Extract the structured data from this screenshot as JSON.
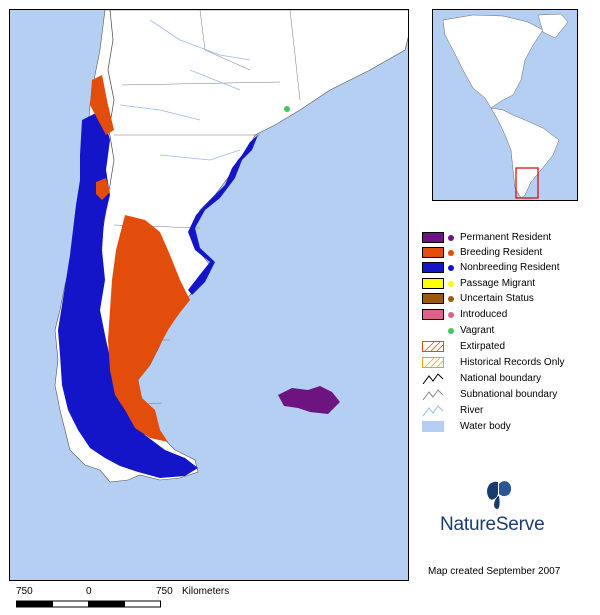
{
  "map": {
    "water_color": "#b4cff1",
    "land_color": "#ffffff",
    "region_colors": {
      "permanent_resident": "#6e1480",
      "breeding_resident": "#e34d0b",
      "nonbreeding_resident": "#1414c8",
      "vagrant": "#44c85c"
    }
  },
  "legend": {
    "items": [
      {
        "label": "Permanent Resident",
        "swatch": "#6e1480",
        "dot": "#6e1480"
      },
      {
        "label": "Breeding Resident",
        "swatch": "#e34d0b",
        "dot": "#e34d0b"
      },
      {
        "label": "Nonbreeding Resident",
        "swatch": "#1414c8",
        "dot": "#1414c8"
      },
      {
        "label": "Passage Migrant",
        "swatch": "#ffff00",
        "dot": "#ffff00"
      },
      {
        "label": "Uncertain Status",
        "swatch": "#9a5a0a",
        "dot": "#9a5a0a"
      },
      {
        "label": "Introduced",
        "swatch": "#e0608a",
        "dot": "#e0608a"
      },
      {
        "label": "Vagrant",
        "swatch": null,
        "dot": "#44c85c"
      },
      {
        "label": "Extirpated",
        "swatch": "hatch-red",
        "dot": null
      },
      {
        "label": "Historical Records Only",
        "swatch": "hatch-orange",
        "dot": null
      },
      {
        "label": "National boundary",
        "swatch": "line-black",
        "dot": null
      },
      {
        "label": "Subnational boundary",
        "swatch": "line-gray",
        "dot": null
      },
      {
        "label": "River",
        "swatch": "line-blue",
        "dot": null
      },
      {
        "label": "Water body",
        "swatch": "#b4cff1",
        "dot": null
      }
    ]
  },
  "logo": {
    "text": "NatureServe",
    "icon": "butterfly-icon"
  },
  "credit": "Map created September 2007",
  "scale_bar": {
    "left_label": "750",
    "mid_label": "0",
    "right_label": "750",
    "unit_label": "Kilometers"
  }
}
